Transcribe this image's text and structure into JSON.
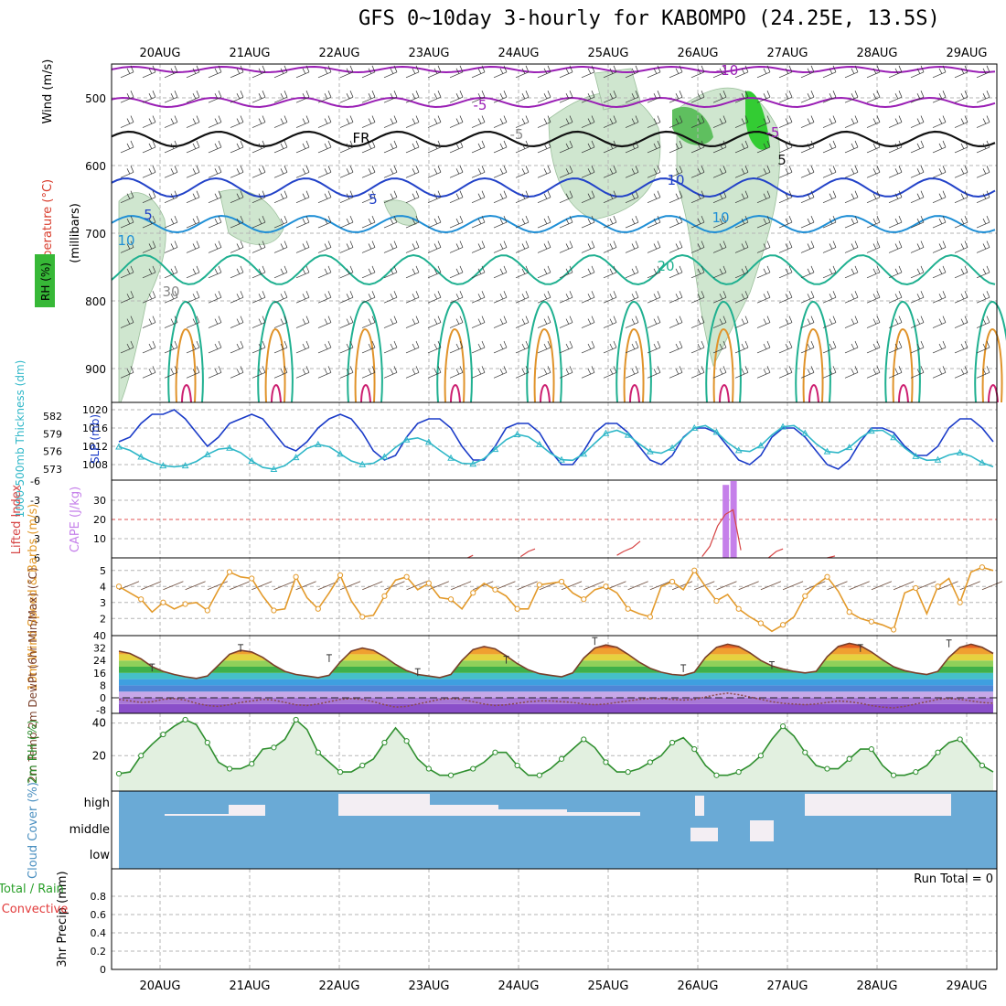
{
  "title": "GFS 0~10day 3-hourly for KABOMPO (24.25E, 13.5S)",
  "x_labels": [
    "20AUG",
    "21AUG",
    "22AUG",
    "23AUG",
    "24AUG",
    "25AUG",
    "26AUG",
    "27AUG",
    "28AUG",
    "29AUG"
  ],
  "chart_data": [
    {
      "type": "heatmap",
      "panel": "upper-air",
      "ylabel_parts": [
        "RH (%)",
        "Temperature (°C)",
        "Wind (m/s)"
      ],
      "axis_unit": "(millibars)",
      "yticks": [
        500,
        600,
        700,
        800,
        900
      ],
      "contour_labels": [
        "-10",
        "-5",
        "FR",
        "-5",
        "5",
        "5",
        "10",
        "10",
        "20",
        "30",
        "10",
        "5",
        "-5"
      ],
      "freezing_level": "FR",
      "rh_scale": "30/50/70/90 % shading (greens)",
      "colors": {
        "temp_cold": "#9a1fb5",
        "temp_5": "#2242c8",
        "temp_10": "#1f8fd6",
        "temp_20": "#1fb090",
        "temp_warm": "#e0932a",
        "temp_hot": "#cc1f70",
        "rh_fill": "#cfe6cf"
      }
    },
    {
      "type": "line",
      "panel": "thickness-slp",
      "ylabel_left": "1000-500mb Thickness (dm)",
      "ylabel_right": "SLP (mb)",
      "yticks_left": [
        573,
        576,
        579,
        582
      ],
      "yticks_right": [
        1008,
        1012,
        1016,
        1020
      ],
      "series": [
        {
          "name": "SLP (mb)",
          "color": "#1a3bc8",
          "values": [
            1013,
            1014,
            1017,
            1019,
            1019,
            1020,
            1018,
            1015,
            1012,
            1014,
            1017,
            1018,
            1019,
            1018,
            1015,
            1012,
            1011,
            1013,
            1016,
            1018,
            1019,
            1018,
            1015,
            1011,
            1009,
            1010,
            1014,
            1017,
            1018,
            1018,
            1016,
            1012,
            1009,
            1009,
            1012,
            1016,
            1017,
            1017,
            1015,
            1011,
            1008,
            1008,
            1011,
            1015,
            1017,
            1017,
            1015,
            1012,
            1009,
            1008,
            1010,
            1014,
            1016,
            1016,
            1015,
            1012,
            1009,
            1008,
            1010,
            1014,
            1016,
            1016,
            1014,
            1011,
            1008,
            1007,
            1009,
            1013,
            1016,
            1016,
            1015,
            1012,
            1010,
            1010,
            1012,
            1016,
            1018,
            1018,
            1016,
            1013
          ]
        },
        {
          "name": "1000-500mb Thickness (dm)",
          "color": "#2fb7c8",
          "values": [
            576.8,
            576.2,
            575.1,
            574.2,
            573.6,
            573.4,
            573.6,
            574.3,
            575.5,
            576.4,
            576.6,
            575.8,
            574.4,
            573.3,
            573.0,
            573.6,
            575.0,
            576.5,
            577.2,
            576.8,
            575.6,
            574.4,
            573.8,
            574.0,
            575.1,
            576.7,
            578.0,
            578.3,
            577.6,
            576.2,
            574.9,
            574.0,
            573.9,
            574.8,
            576.4,
            578.0,
            578.9,
            578.5,
            577.2,
            575.7,
            574.6,
            574.5,
            575.6,
            577.4,
            579.1,
            579.6,
            578.8,
            577.3,
            576.0,
            575.7,
            576.6,
            578.3,
            580.0,
            580.4,
            579.3,
            577.5,
            576.2,
            576.0,
            577.0,
            578.8,
            580.2,
            580.4,
            579.1,
            577.3,
            576.0,
            575.8,
            576.7,
            578.3,
            579.5,
            579.6,
            578.4,
            576.6,
            575.2,
            574.5,
            574.6,
            575.4,
            575.8,
            575.2,
            574.1,
            573.4
          ]
        }
      ]
    },
    {
      "type": "bar",
      "panel": "cape-lifted-index",
      "ylabel_left": "Lifted Index",
      "ylabel_right": "CAPE (J/kg)",
      "yticks_left": [
        -6,
        -3,
        0,
        3,
        6
      ],
      "yticks_right": [
        10,
        20,
        30
      ],
      "series": [
        {
          "name": "CAPE (J/kg)",
          "color": "#c580ea",
          "bars": [
            {
              "t": 54.8,
              "v": 38
            },
            {
              "t": 55.5,
              "v": 40
            }
          ]
        },
        {
          "name": "Lifted Index",
          "color": "#d64545",
          "x": [
            31.5,
            32.0,
            36.3,
            37.0,
            37.6,
            45.0,
            45.6,
            46.4,
            47.1,
            52.7,
            53.4,
            54.1,
            54.8,
            55.5,
            56.2,
            58.7,
            59.4,
            60.0,
            64.0,
            64.7
          ],
          "values": [
            6,
            5.6,
            5.8,
            5.0,
            4.6,
            5.6,
            5.0,
            4.4,
            3.4,
            5.8,
            4.2,
            1.0,
            -0.8,
            -1.5,
            4.8,
            6.0,
            5.0,
            4.6,
            6.0,
            5.7
          ]
        }
      ]
    },
    {
      "type": "line",
      "panel": "10m-wind",
      "ylabel": "10m Wind Speed & Barbs (m/s)",
      "yticks": [
        2,
        3,
        4,
        5
      ],
      "series": [
        {
          "name": "10m Wind Speed",
          "color": "#e39a2b",
          "values": [
            4.0,
            3.6,
            3.2,
            2.4,
            3.0,
            2.6,
            2.9,
            3.0,
            2.5,
            3.8,
            4.9,
            4.6,
            4.5,
            3.4,
            2.5,
            2.6,
            4.6,
            3.3,
            2.6,
            3.6,
            4.7,
            3.1,
            2.1,
            2.2,
            3.4,
            4.4,
            4.6,
            3.8,
            4.2,
            3.3,
            3.2,
            2.6,
            3.6,
            4.2,
            3.8,
            3.4,
            2.6,
            2.6,
            4.1,
            4.2,
            4.3,
            3.6,
            3.2,
            3.8,
            4.0,
            3.6,
            2.6,
            2.3,
            2.1,
            4.0,
            4.3,
            3.8,
            5.0,
            4.0,
            3.1,
            3.5,
            2.6,
            2.1,
            1.7,
            1.2,
            1.6,
            2.1,
            3.4,
            4.1,
            4.6,
            3.7,
            2.4,
            2.0,
            1.8,
            1.6,
            1.3,
            3.6,
            3.9,
            2.3,
            4.0,
            4.5,
            3.0,
            4.9,
            5.2,
            5.0
          ]
        }
      ]
    },
    {
      "type": "area",
      "panel": "2m-temp",
      "ylabel": "2m Temp 2m DewPt (6hr Min/Max) (°C)",
      "yticks": [
        -8,
        0,
        8,
        16,
        24,
        32,
        40
      ],
      "series": [
        {
          "name": "2m Temp",
          "color": "#7a3f2a",
          "values": [
            30.0,
            28.5,
            25.0,
            20.0,
            17.0,
            15.0,
            13.5,
            12.5,
            14.0,
            21.0,
            28.0,
            30.5,
            29.5,
            26.0,
            21.0,
            17.0,
            15.0,
            14.0,
            13.0,
            14.5,
            23.0,
            30.0,
            32.0,
            30.5,
            26.5,
            21.5,
            17.5,
            15.0,
            14.0,
            13.0,
            15.0,
            24.0,
            31.0,
            33.0,
            31.5,
            27.0,
            22.0,
            18.0,
            15.5,
            14.5,
            13.5,
            16.0,
            25.5,
            32.0,
            34.0,
            32.5,
            28.0,
            23.0,
            19.0,
            16.5,
            15.0,
            14.5,
            16.5,
            26.0,
            32.5,
            34.5,
            33.0,
            29.0,
            24.0,
            20.5,
            18.5,
            17.0,
            16.0,
            17.0,
            26.5,
            33.0,
            35.0,
            33.5,
            29.5,
            24.5,
            20.0,
            17.5,
            16.0,
            15.0,
            17.0,
            26.0,
            32.5,
            34.5,
            32.5,
            28.5
          ]
        },
        {
          "name": "2m DewPt",
          "color": "#8a4a4a",
          "values": [
            -1.0,
            -2.0,
            -3.0,
            -2.5,
            -1.0,
            -0.5,
            -1.5,
            -3.5,
            -5.0,
            -5.5,
            -4.5,
            -3.0,
            -2.0,
            -1.0,
            -1.5,
            -3.0,
            -4.5,
            -5.0,
            -4.0,
            -2.5,
            -1.0,
            -0.5,
            -1.0,
            -2.5,
            -4.5,
            -6.0,
            -5.5,
            -4.0,
            -2.5,
            -1.0,
            -0.5,
            -1.0,
            -2.5,
            -4.0,
            -5.0,
            -4.5,
            -3.5,
            -2.5,
            -2.0,
            -2.0,
            -2.5,
            -3.0,
            -4.0,
            -4.5,
            -4.0,
            -3.0,
            -2.0,
            -1.0,
            -0.5,
            -0.5,
            -1.0,
            -1.5,
            -1.0,
            0.5,
            2.0,
            3.0,
            2.0,
            0.5,
            -1.0,
            -2.5,
            -3.5,
            -4.0,
            -4.5,
            -4.0,
            -3.0,
            -2.0,
            -2.5,
            -3.5,
            -5.0,
            -6.0,
            -6.5,
            -5.5,
            -4.0,
            -2.5,
            -1.0,
            -0.5,
            -1.0,
            -2.0,
            -3.0,
            -3.5
          ]
        }
      ]
    },
    {
      "type": "area",
      "panel": "2m-rh",
      "ylabel": "2m RH (%)",
      "yticks": [
        20,
        40
      ],
      "series": [
        {
          "name": "2m RH",
          "color": "#2f8f2f",
          "values": [
            9,
            10,
            20,
            27,
            33,
            38,
            42,
            39,
            28,
            16,
            12,
            12,
            15,
            24,
            25,
            30,
            42,
            36,
            22,
            16,
            10,
            10,
            14,
            18,
            28,
            37,
            29,
            18,
            12,
            8,
            8,
            10,
            12,
            16,
            22,
            22,
            14,
            8,
            8,
            12,
            18,
            24,
            30,
            25,
            16,
            10,
            10,
            12,
            16,
            20,
            28,
            31,
            24,
            14,
            8,
            8,
            10,
            14,
            20,
            30,
            38,
            32,
            22,
            14,
            12,
            12,
            18,
            24,
            24,
            14,
            8,
            8,
            10,
            14,
            22,
            28,
            30,
            22,
            14,
            10
          ]
        }
      ]
    },
    {
      "type": "bar",
      "panel": "cloud-cover",
      "ylabel": "Cloud Cover (%)",
      "yticks": [
        "high",
        "middle",
        "low"
      ],
      "colors": {
        "sky": "#6aaad6",
        "cloud": "#f3eef3"
      }
    },
    {
      "type": "bar",
      "panel": "precip",
      "ylabel": "3hr Precip (mm)",
      "ylabel_side": [
        "Total / Rain",
        "Convective"
      ],
      "yticks": [
        0,
        0.2,
        0.4,
        0.6,
        0.8
      ],
      "ylim": [
        0,
        1
      ],
      "annotation": "Run Total = 0",
      "colors": {
        "total": "#2aa02a",
        "convective": "#e23b3b"
      }
    }
  ]
}
